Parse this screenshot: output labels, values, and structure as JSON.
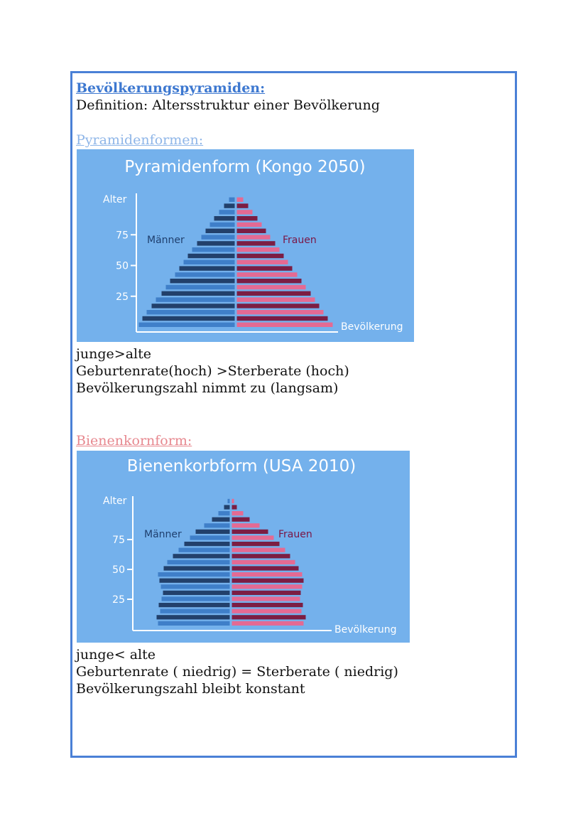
{
  "heading": "Bevölkerungspyramiden:",
  "definition": "Definition: Altersstruktur einer Bevölkerung",
  "section1": {
    "heading": "Pyramidenformen:",
    "lines": [
      "junge>alte",
      "Geburtenrate(hoch) >Sterberate (hoch)",
      "Bevölkerungszahl nimmt zu (langsam)"
    ]
  },
  "section2": {
    "heading": "Bienenkornform:",
    "lines": [
      "junge< alte",
      "Geburtenrate ( niedrig) = Sterberate ( niedrig)",
      "Bevölkerungszahl bleibt konstant"
    ]
  },
  "colors": {
    "chart_bg": "#74b1ec",
    "male_light": "#3f7fc9",
    "male_dark": "#22406b",
    "female_light": "#e46a93",
    "female_dark": "#7c1d43",
    "axis": "#ffffff",
    "maenner_label": "#1f3f6e",
    "frauen_label": "#7a1545",
    "frame": "#4a80d6"
  },
  "chart_data": [
    {
      "type": "bar",
      "title": "Pyramidenform (Kongo 2050)",
      "ylabel": "Alter",
      "xlabel": "Bevölkerung",
      "yticks": [
        25,
        50,
        75
      ],
      "series": [
        {
          "name": "Männer",
          "values": [
            135,
            130,
            124,
            117,
            111,
            103,
            97,
            91,
            84,
            78,
            72,
            66,
            60,
            53,
            47,
            41,
            35,
            29,
            22,
            15,
            8
          ]
        },
        {
          "name": "Frauen",
          "values": [
            135,
            128,
            122,
            116,
            110,
            104,
            97,
            91,
            85,
            78,
            72,
            66,
            60,
            54,
            47,
            41,
            35,
            29,
            22,
            16,
            9
          ]
        }
      ]
    },
    {
      "type": "bar",
      "title": "Bienenkorbform (USA 2010)",
      "ylabel": "Alter",
      "xlabel": "Bevölkerung",
      "yticks": [
        25,
        50,
        75
      ],
      "series": [
        {
          "name": "Männer",
          "values": [
            101,
            103,
            98,
            100,
            96,
            94,
            97,
            99,
            101,
            93,
            88,
            80,
            72,
            64,
            56,
            48,
            36,
            25,
            16,
            8,
            3
          ]
        },
        {
          "name": "Frauen",
          "values": [
            101,
            104,
            98,
            100,
            96,
            97,
            99,
            101,
            99,
            94,
            89,
            82,
            75,
            67,
            59,
            51,
            39,
            25,
            16,
            7,
            3
          ]
        }
      ]
    }
  ]
}
